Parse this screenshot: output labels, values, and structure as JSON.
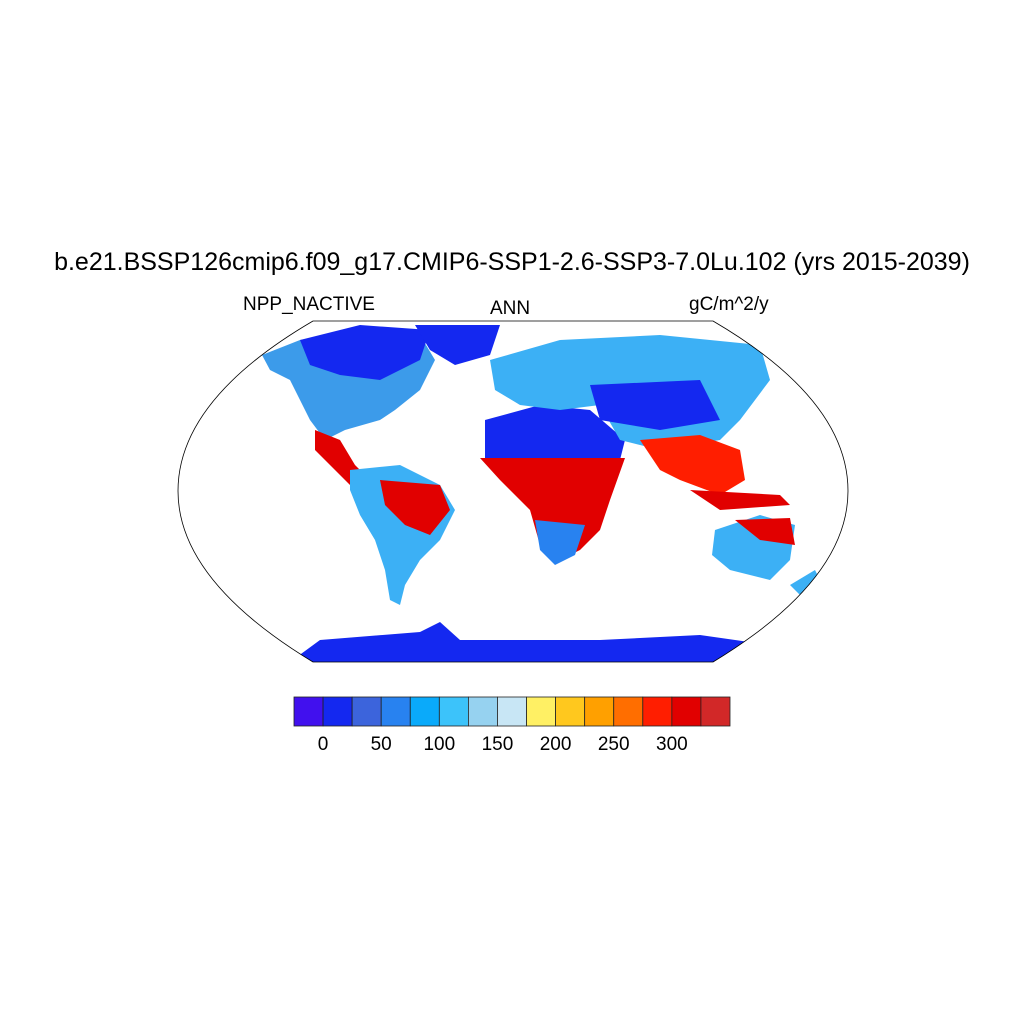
{
  "title": "b.e21.BSSP126cmip6.f09_g17.CMIP6-SSP1-2.6-SSP3-7.0Lu.102 (yrs 2015-2039)",
  "left_subtitle": "NPP_NACTIVE",
  "center_subtitle": "ANN",
  "right_subtitle": "gC/m^2/y",
  "projection": "Robinson",
  "colorbar": {
    "levels": [
      0,
      25,
      50,
      75,
      100,
      125,
      150,
      175,
      200,
      225,
      250,
      275,
      300,
      325
    ],
    "tick_labels": [
      "0",
      "50",
      "100",
      "150",
      "200",
      "250",
      "300"
    ],
    "colors": [
      "#4110EE",
      "#1428F0",
      "#3C64DC",
      "#2882F0",
      "#0AAAFA",
      "#3CC3FA",
      "#96D2F0",
      "#C8E6F5",
      "#FFF064",
      "#FFC81E",
      "#FFA000",
      "#FF6E00",
      "#FF1E00",
      "#E10000",
      "#D22828"
    ]
  }
}
